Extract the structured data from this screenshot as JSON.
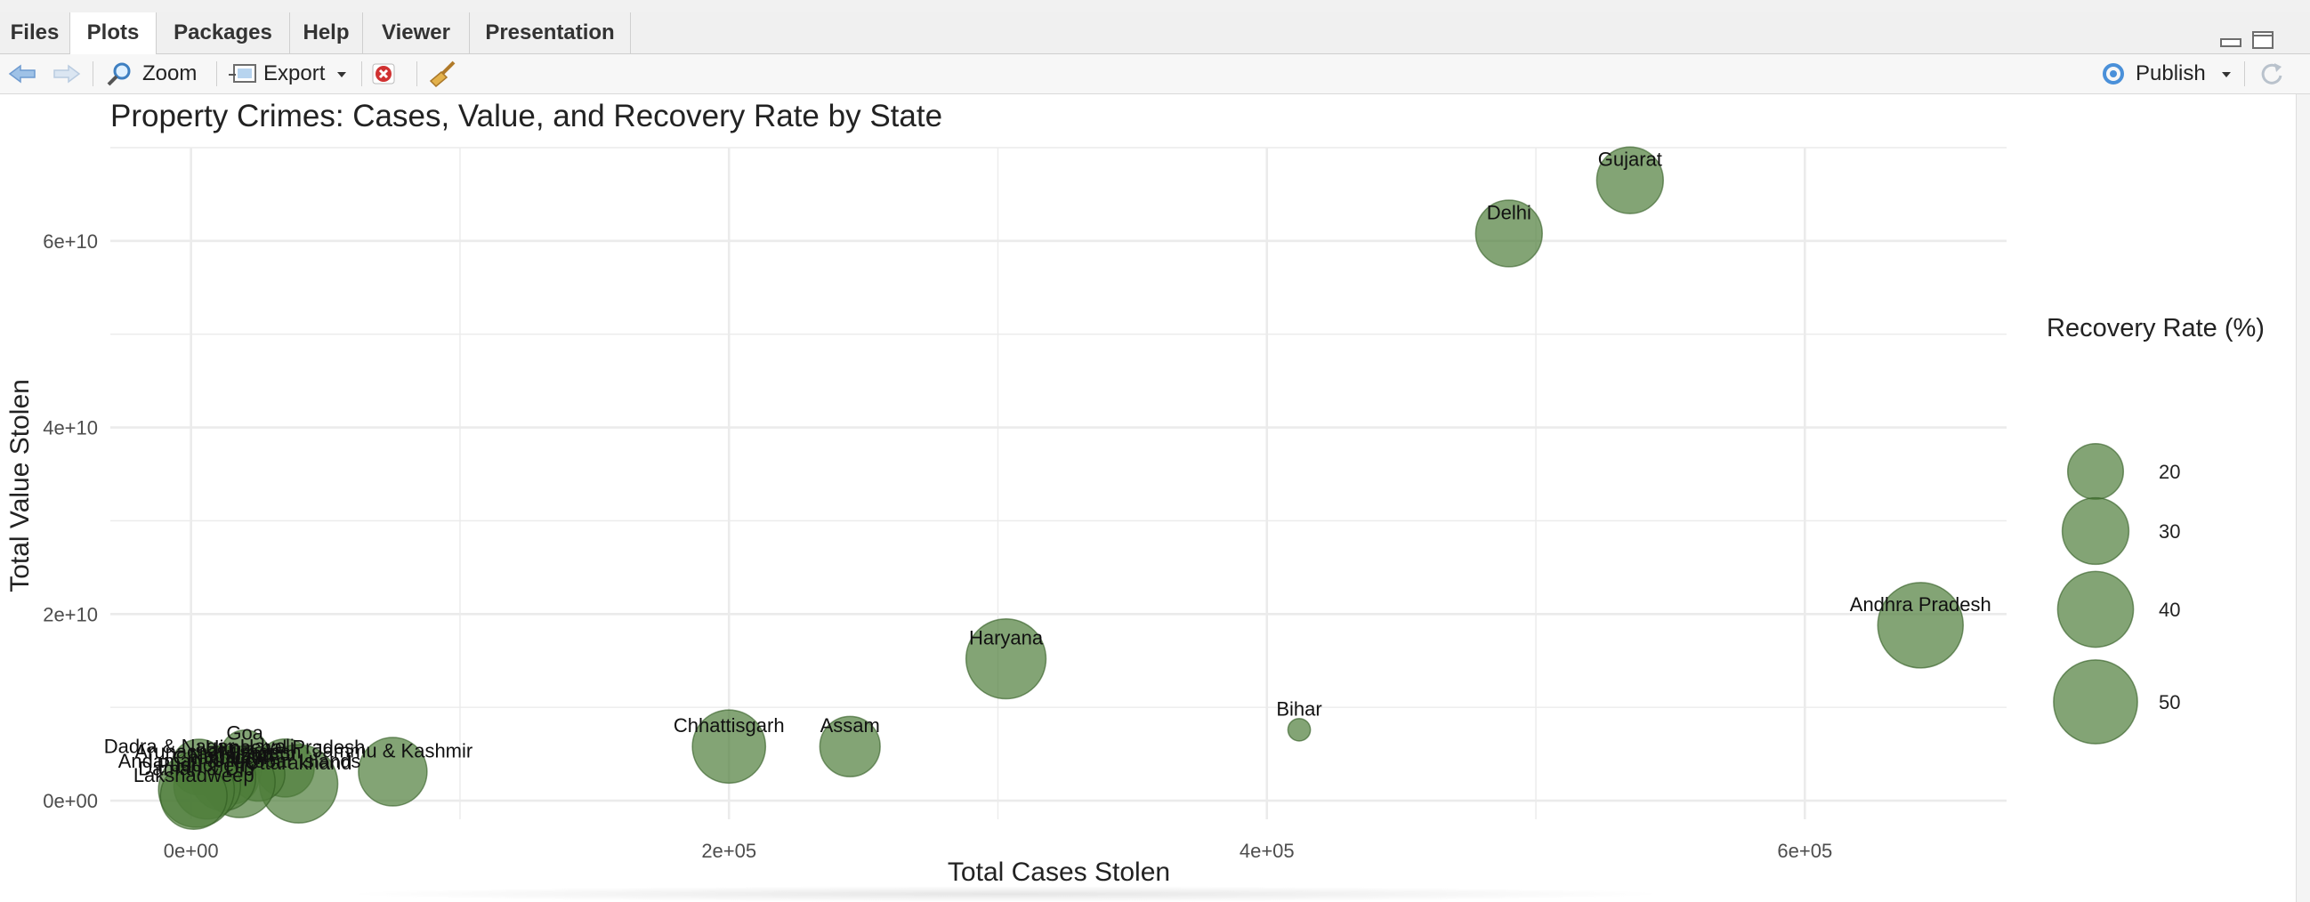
{
  "tabs": [
    {
      "label": "Files",
      "active": false
    },
    {
      "label": "Plots",
      "active": true
    },
    {
      "label": "Packages",
      "active": false
    },
    {
      "label": "Help",
      "active": false
    },
    {
      "label": "Viewer",
      "active": false
    },
    {
      "label": "Presentation",
      "active": false
    }
  ],
  "toolbar": {
    "back_icon": "arrow-left-icon",
    "forward_icon": "arrow-right-icon",
    "zoom_label": "Zoom",
    "export_label": "Export",
    "remove_icon": "remove-plot-icon",
    "clear_icon": "broom-icon",
    "publish_label": "Publish",
    "refresh_icon": "refresh-icon"
  },
  "colors": {
    "bubble_fill": "#4f7d3a",
    "bubble_stroke": "#2f5a20",
    "grid": "#ebebeb",
    "text": "#222222",
    "axis_text": "#4d4d4d"
  },
  "chart_data": {
    "type": "scatter",
    "title": "Property Crimes: Cases, Value, and Recovery Rate by State",
    "xlabel": "Total Cases Stolen",
    "ylabel": "Total Value Stolen",
    "xlim": [
      -30000,
      675000
    ],
    "ylim": [
      -2000000000,
      70000000000
    ],
    "x_ticks": [
      {
        "value": 0,
        "label": "0e+00"
      },
      {
        "value": 200000,
        "label": "2e+05"
      },
      {
        "value": 400000,
        "label": "4e+05"
      },
      {
        "value": 600000,
        "label": "6e+05"
      }
    ],
    "y_ticks": [
      {
        "value": 0,
        "label": "0e+00"
      },
      {
        "value": 20000000000,
        "label": "2e+10"
      },
      {
        "value": 40000000000,
        "label": "4e+10"
      },
      {
        "value": 60000000000,
        "label": "6e+10"
      }
    ],
    "grid": true,
    "size_legend": {
      "title": "Recovery Rate (%)",
      "placement": "right",
      "entries": [
        {
          "value": 20,
          "label": "20"
        },
        {
          "value": 30,
          "label": "30"
        },
        {
          "value": 40,
          "label": "40"
        },
        {
          "value": 50,
          "label": "50"
        }
      ]
    },
    "points": [
      {
        "label": "Gujarat",
        "x": 535000,
        "y": 66500000000,
        "size": 30
      },
      {
        "label": "Delhi",
        "x": 490000,
        "y": 60800000000,
        "size": 30
      },
      {
        "label": "Andhra Pradesh",
        "x": 643000,
        "y": 18800000000,
        "size": 52
      },
      {
        "label": "Haryana",
        "x": 303000,
        "y": 15200000000,
        "size": 45
      },
      {
        "label": "Bihar",
        "x": 412000,
        "y": 7600000000,
        "size": 2
      },
      {
        "label": "Assam",
        "x": 245000,
        "y": 5800000000,
        "size": 24
      },
      {
        "label": "Chhattisgarh",
        "x": 200000,
        "y": 5800000000,
        "size": 37
      },
      {
        "label": "Jammu & Kashmir",
        "x": 75000,
        "y": 3100000000,
        "size": 32
      },
      {
        "label": "Goa",
        "x": 20000,
        "y": 5000000000,
        "size": 14
      },
      {
        "label": "Himachal Pradesh",
        "x": 35000,
        "y": 3500000000,
        "size": 22
      },
      {
        "label": "Uttarakhand",
        "x": 40000,
        "y": 1800000000,
        "size": 43
      },
      {
        "label": "Arunachal Pradesh",
        "x": 10000,
        "y": 3000000000,
        "size": 18
      },
      {
        "label": "Nagaland",
        "x": 15000,
        "y": 2600000000,
        "size": 20
      },
      {
        "label": "Mizoram",
        "x": 25000,
        "y": 2800000000,
        "size": 18
      },
      {
        "label": "Andaman & Nicobar Islands",
        "x": 18000,
        "y": 2000000000,
        "size": 35
      },
      {
        "label": "Dadra & Nagar Haveli",
        "x": 3000,
        "y": 3600000000,
        "size": 20
      },
      {
        "label": "Chandigarh",
        "x": 12000,
        "y": 2400000000,
        "size": 28
      },
      {
        "label": "Puducherry",
        "x": 6000,
        "y": 1600000000,
        "size": 30
      },
      {
        "label": "Daman & Diu",
        "x": 2000,
        "y": 1200000000,
        "size": 40
      },
      {
        "label": "Lakshadweep",
        "x": 1000,
        "y": 500000000,
        "size": 30
      }
    ]
  }
}
